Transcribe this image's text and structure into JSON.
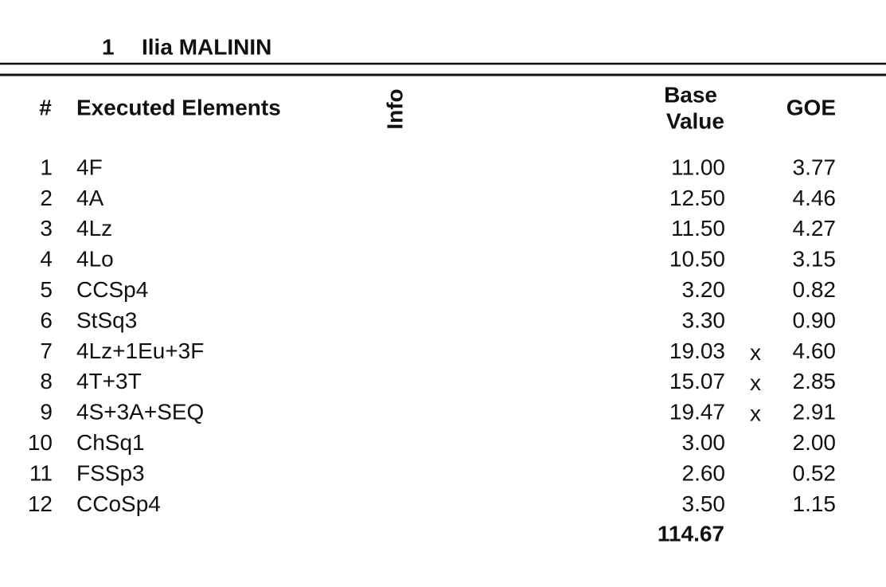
{
  "header": {
    "rank": "1",
    "name": "Ilia MALININ"
  },
  "table": {
    "columns": {
      "number": "#",
      "element": "Executed Elements",
      "info": "Info",
      "base_value": [
        "Base",
        "Value"
      ],
      "goe": "GOE"
    },
    "rows": [
      {
        "number": "1",
        "element": "4F",
        "base_value": "11.00",
        "goe": "3.77"
      },
      {
        "number": "2",
        "element": "4A",
        "base_value": "12.50",
        "goe": "4.46"
      },
      {
        "number": "3",
        "element": "4Lz",
        "base_value": "11.50",
        "goe": "4.27"
      },
      {
        "number": "4",
        "element": "4Lo",
        "base_value": "10.50",
        "goe": "3.15"
      },
      {
        "number": "5",
        "element": "CCSp4",
        "base_value": "3.20",
        "goe": "0.82"
      },
      {
        "number": "6",
        "element": "StSq3",
        "base_value": "3.30",
        "goe": "0.90"
      },
      {
        "number": "7",
        "element": "4Lz+1Eu+3F",
        "base_value": "19.03",
        "bonus": "x",
        "goe": "4.60"
      },
      {
        "number": "8",
        "element": "4T+3T",
        "base_value": "15.07",
        "bonus": "x",
        "goe": "2.85"
      },
      {
        "number": "9",
        "element": "4S+3A+SEQ",
        "base_value": "19.47",
        "bonus": "x",
        "goe": "2.91"
      },
      {
        "number": "10",
        "element": "ChSq1",
        "base_value": "3.00",
        "goe": "2.00"
      },
      {
        "number": "11",
        "element": "FSSp3",
        "base_value": "2.60",
        "goe": "0.52"
      },
      {
        "number": "12",
        "element": "CCoSp4",
        "base_value": "3.50",
        "goe": "1.15"
      }
    ],
    "total": "114.67"
  }
}
